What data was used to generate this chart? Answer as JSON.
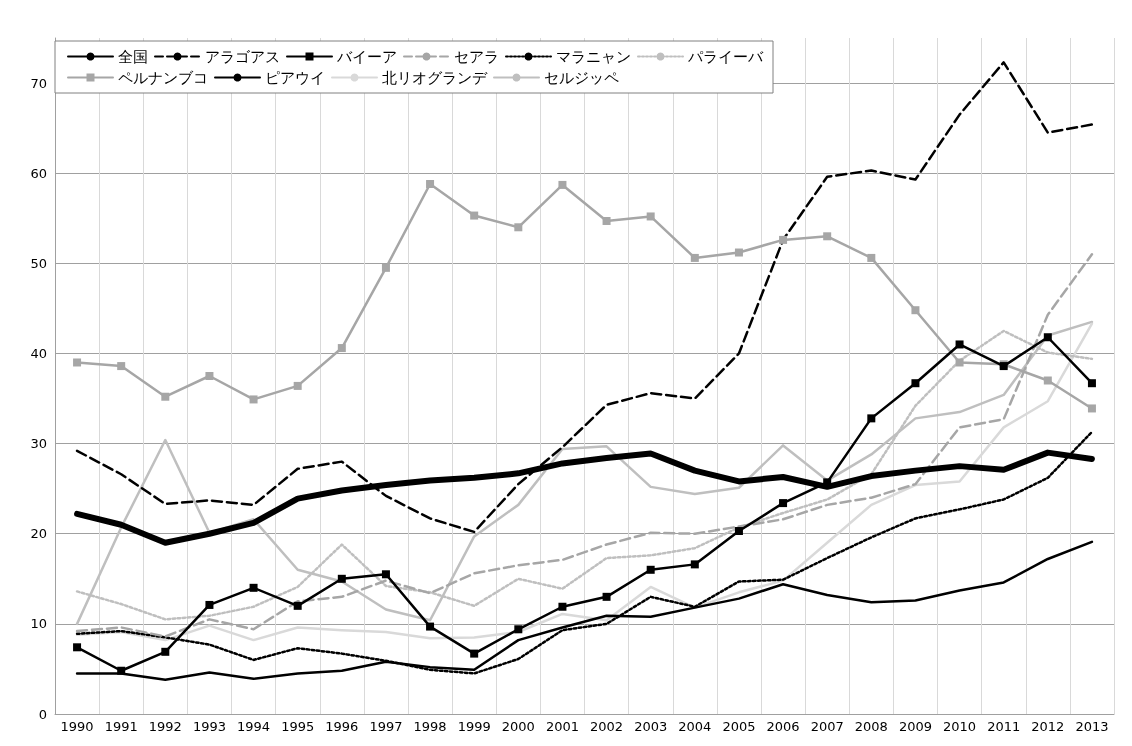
{
  "chart_data": {
    "type": "line",
    "categories": [
      "1990",
      "1991",
      "1992",
      "1993",
      "1994",
      "1995",
      "1996",
      "1997",
      "1998",
      "1999",
      "2000",
      "2001",
      "2002",
      "2003",
      "2004",
      "2005",
      "2006",
      "2007",
      "2008",
      "2009",
      "2010",
      "2011",
      "2012",
      "2013"
    ],
    "ylim": [
      0,
      75
    ],
    "yticks": [
      0,
      10,
      20,
      30,
      40,
      50,
      60,
      70
    ],
    "grid": true,
    "legend": "top left",
    "series": [
      {
        "name": "全国",
        "color": "#000000",
        "line_style": "solid",
        "marker": "none",
        "values": [
          22.2,
          21,
          19,
          20,
          21.2,
          23.9,
          24.8,
          25.4,
          25.9,
          26.2,
          26.7,
          27.8,
          28.4,
          28.9,
          27,
          25.8,
          26.3,
          25.2,
          26.4,
          27,
          27.5,
          27.1,
          29,
          28.3
        ]
      },
      {
        "name": "アラゴアス",
        "color": "#000000",
        "line_style": "dashed",
        "marker": "none",
        "values": [
          29.2,
          26.6,
          23.3,
          23.7,
          23.2,
          27.2,
          28,
          24.2,
          21.7,
          20.2,
          25.5,
          29.6,
          34.3,
          35.6,
          35,
          40,
          52.6,
          59.6,
          60.3,
          59.3,
          66.5,
          72.3,
          64.5,
          65.4
        ]
      },
      {
        "name": "バイーア",
        "color": "#000000",
        "line_style": "solid",
        "marker": "square",
        "values": [
          7.4,
          4.8,
          6.9,
          12.1,
          14,
          12,
          15,
          15.5,
          9.7,
          6.7,
          9.4,
          11.9,
          13,
          16,
          16.6,
          20.3,
          23.4,
          25.7,
          32.8,
          36.7,
          41,
          38.6,
          41.8,
          36.7
        ]
      },
      {
        "name": "セアラ",
        "color": "#a6a6a6",
        "line_style": "dashed",
        "marker": "none",
        "values": [
          9.2,
          9.6,
          8.6,
          10.5,
          9.4,
          12.5,
          13,
          14.8,
          13.4,
          15.6,
          16.5,
          17.1,
          18.8,
          20.1,
          20,
          20.8,
          21.6,
          23.2,
          24,
          25.5,
          31.8,
          32.7,
          44.3,
          51
        ]
      },
      {
        "name": "マラニャン",
        "color": "#000000",
        "line_style": "dotted",
        "marker": "none",
        "values": [
          8.9,
          9.2,
          8.5,
          7.7,
          6,
          7.3,
          6.7,
          5.9,
          4.9,
          4.5,
          6.1,
          9.3,
          10,
          13,
          11.9,
          14.7,
          14.9,
          17.3,
          19.6,
          21.7,
          22.7,
          23.8,
          26.2,
          31.3
        ]
      },
      {
        "name": "パライーバ",
        "color": "#bfbfbf",
        "line_style": "dotted",
        "marker": "none",
        "values": [
          13.6,
          12.2,
          10.5,
          10.9,
          11.9,
          14.1,
          18.8,
          14.2,
          13.5,
          12,
          15,
          13.9,
          17.3,
          17.6,
          18.4,
          20.7,
          22.3,
          23.8,
          26.6,
          34.2,
          39.2,
          42.5,
          40.1,
          39.4
        ]
      },
      {
        "name": "ペルナンブコ",
        "color": "#a6a6a6",
        "line_style": "solid",
        "marker": "square",
        "values": [
          39,
          38.6,
          35.2,
          37.5,
          34.9,
          36.4,
          40.6,
          49.5,
          58.8,
          55.3,
          54,
          58.7,
          54.7,
          55.2,
          50.6,
          51.2,
          52.6,
          53,
          50.6,
          44.8,
          39,
          38.8,
          37,
          33.9
        ]
      },
      {
        "name": "ピアウイ",
        "color": "#000000",
        "line_style": "solid",
        "marker": "none",
        "values": [
          4.5,
          4.5,
          3.8,
          4.6,
          3.9,
          4.5,
          4.8,
          5.8,
          5.2,
          4.9,
          8.2,
          9.6,
          10.9,
          10.8,
          11.8,
          12.8,
          14.4,
          13.2,
          12.4,
          12.6,
          13.7,
          14.6,
          17.2,
          19.1
        ]
      },
      {
        "name": "北リオグランデ",
        "color": "#d9d9d9",
        "line_style": "solid",
        "marker": "none",
        "values": [
          8.8,
          9.1,
          8.2,
          9.8,
          8.2,
          9.6,
          9.3,
          9.1,
          8.4,
          8.5,
          9.1,
          11.1,
          10.4,
          14.1,
          11.8,
          13.5,
          14.8,
          19,
          23.2,
          25.4,
          25.8,
          31.8,
          34.7,
          43.3
        ]
      },
      {
        "name": "セルジッペ",
        "color": "#bfbfbf",
        "line_style": "solid",
        "marker": "none",
        "values": [
          10,
          20.7,
          30.4,
          20.1,
          21.6,
          16,
          14.7,
          11.6,
          10.4,
          19.7,
          23.2,
          29.4,
          29.7,
          25.2,
          24.4,
          25.1,
          29.8,
          25.9,
          28.8,
          32.8,
          33.5,
          35.4,
          42,
          43.5
        ]
      }
    ]
  }
}
